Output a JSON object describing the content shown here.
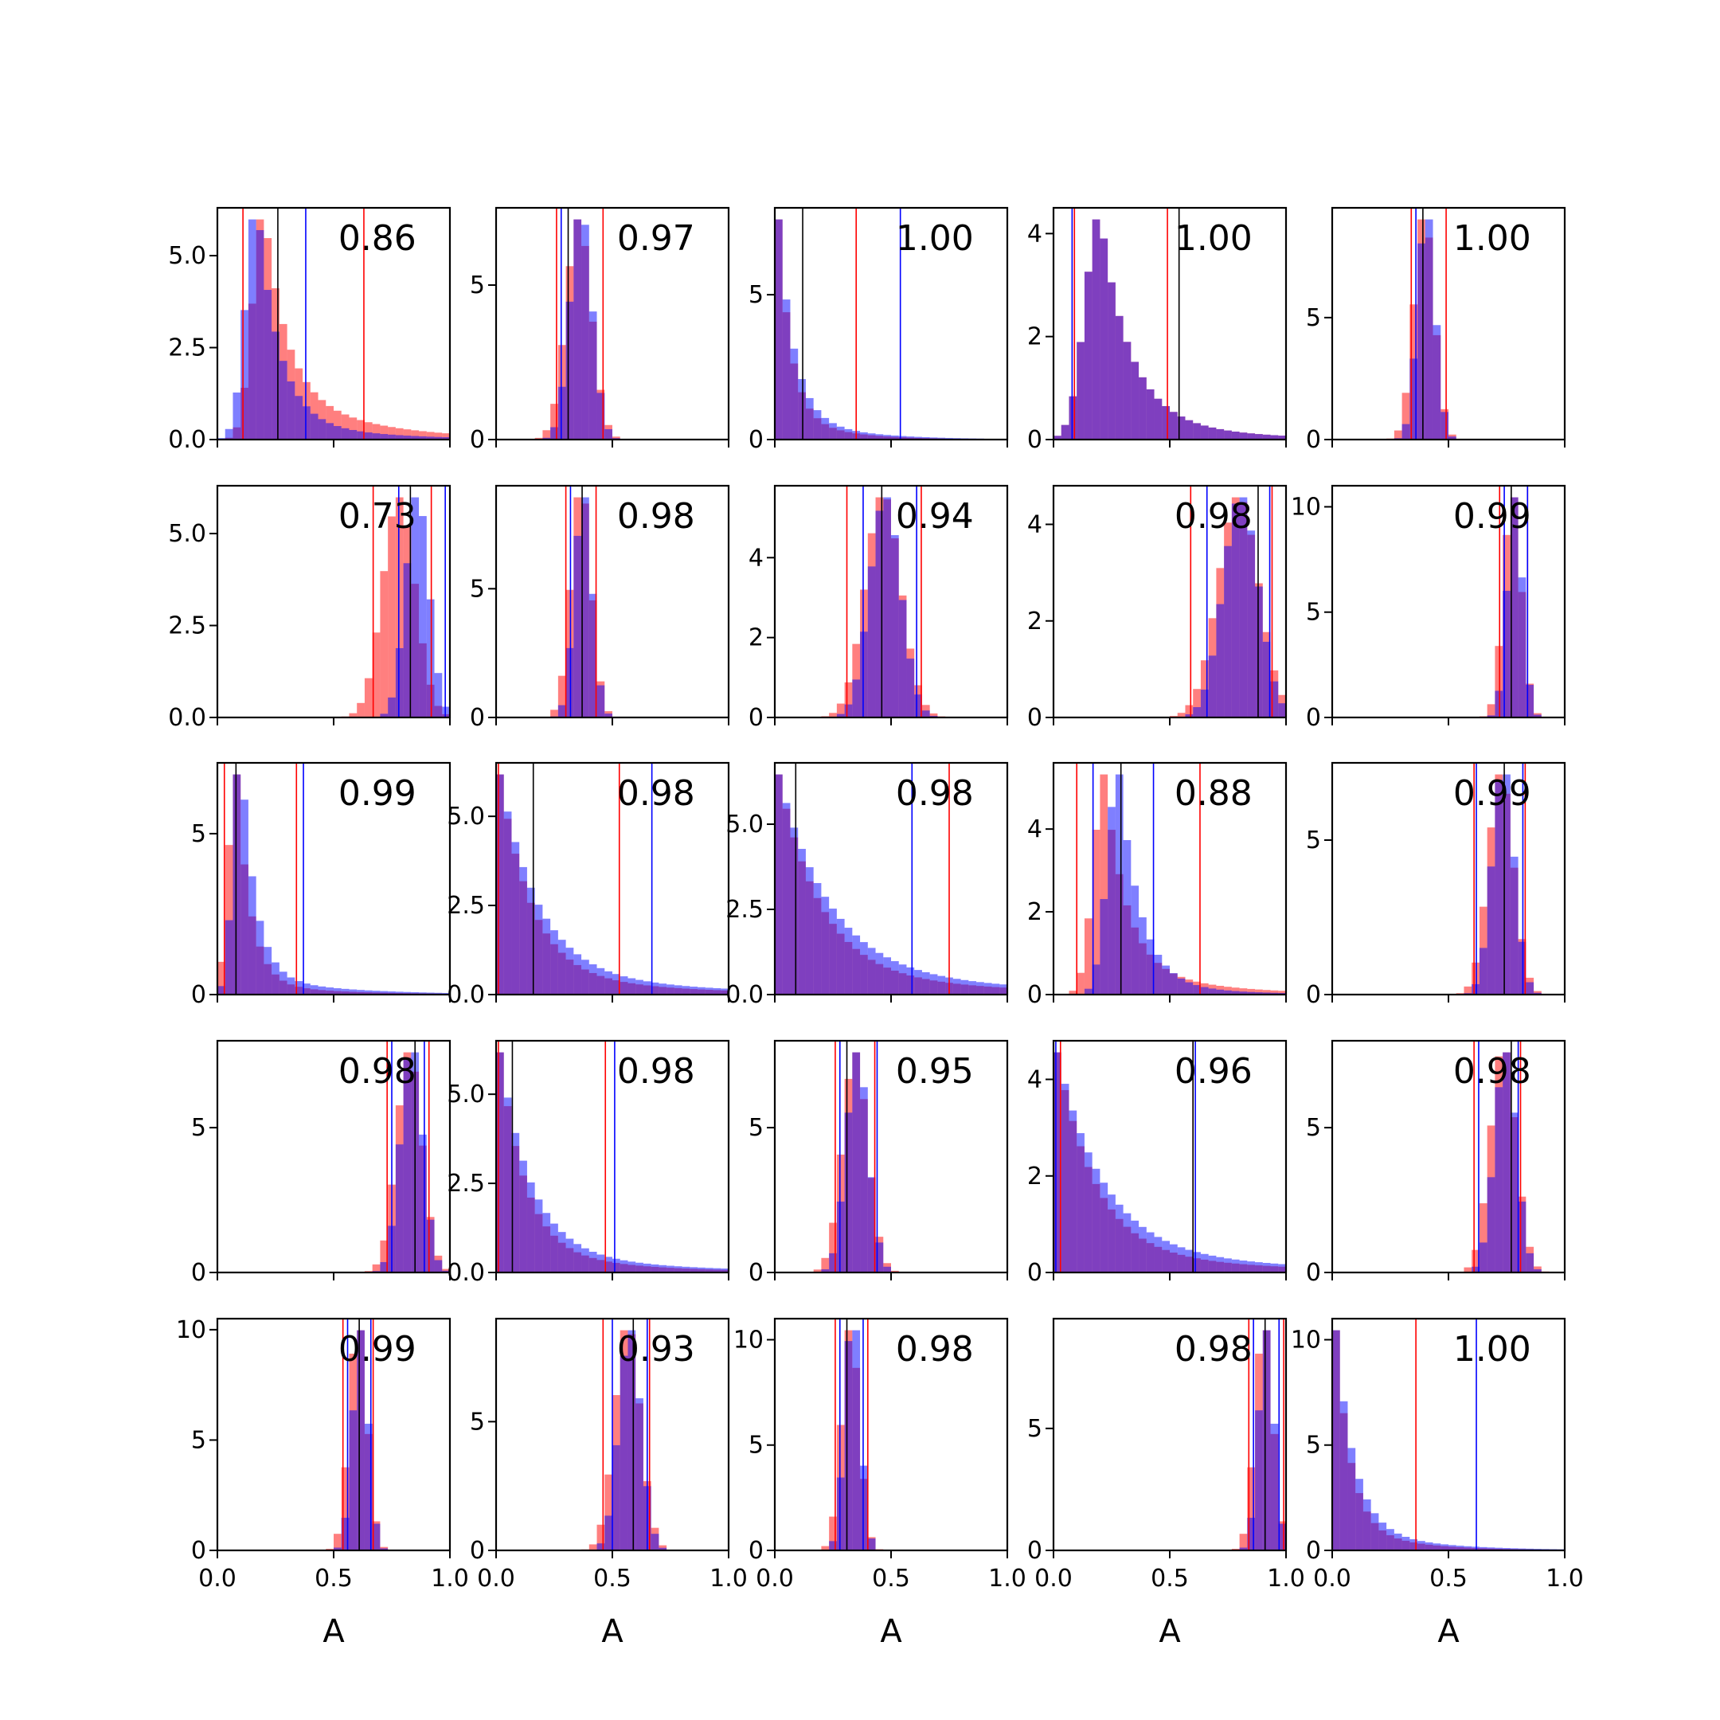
{
  "colors": {
    "red": "#ff0000",
    "blue": "#0000ff",
    "black": "#000000"
  },
  "chart_data": {
    "type": "bar",
    "layout": "grid 5x5 of histograms (shared x-axis per column)",
    "xlabel": "A",
    "xlim": [
      0,
      1
    ],
    "xticks": [
      "0.0",
      "0.5",
      "1.0"
    ],
    "series_colors": {
      "first": "red",
      "second": "blue",
      "overlap": "purple"
    },
    "panels": [
      {
        "row": 0,
        "col": 0,
        "annotation": "0.86",
        "ylim": [
          0,
          6.3
        ],
        "yticks": [
          "0.0",
          "2.5",
          "5.0"
        ],
        "ytick_values": [
          0,
          2.5,
          5
        ],
        "red_lines": [
          0.11,
          0.63
        ],
        "blue_lines": [
          0.38
        ],
        "black_lines": [
          0.26
        ],
        "hist": {
          "type": "skewed",
          "mode_red": 0.2,
          "mode_blue": 0.17,
          "width": 0.06,
          "tail_red": 0.25,
          "tail_blue": 0.1
        }
      },
      {
        "row": 0,
        "col": 1,
        "annotation": "0.97",
        "ylim": [
          0,
          7.5
        ],
        "yticks": [
          "0",
          "5"
        ],
        "ytick_values": [
          0,
          5
        ],
        "red_lines": [
          0.26,
          0.46
        ],
        "blue_lines": [
          0.28
        ],
        "black_lines": [
          0.31
        ],
        "hist": {
          "type": "normal",
          "mean": 0.36,
          "sd": 0.05
        }
      },
      {
        "row": 0,
        "col": 2,
        "annotation": "1.00",
        "ylim": [
          0,
          8
        ],
        "yticks": [
          "0",
          "5"
        ],
        "ytick_values": [
          0,
          5
        ],
        "red_lines": [
          0.35
        ],
        "blue_lines": [
          0.54
        ],
        "black_lines": [
          0.12
        ],
        "hist": {
          "type": "decay",
          "scale": 0.06
        }
      },
      {
        "row": 0,
        "col": 3,
        "annotation": "1.00",
        "ylim": [
          0,
          4.5
        ],
        "yticks": [
          "0",
          "2",
          "4"
        ],
        "ytick_values": [
          0,
          2,
          4
        ],
        "red_lines": [
          0.09,
          0.49
        ],
        "blue_lines": [
          0.08
        ],
        "black_lines": [
          0.54
        ],
        "hist": {
          "type": "skewed",
          "mode_red": 0.2,
          "mode_blue": 0.2,
          "width": 0.08,
          "tail_red": 0.15,
          "tail_blue": 0.15
        }
      },
      {
        "row": 0,
        "col": 4,
        "annotation": "1.00",
        "ylim": [
          0,
          9.5
        ],
        "yticks": [
          "0",
          "5"
        ],
        "ytick_values": [
          0,
          5
        ],
        "red_lines": [
          0.34,
          0.49
        ],
        "blue_lines": [
          0.36
        ],
        "black_lines": [
          0.39
        ],
        "hist": {
          "type": "normal",
          "mean": 0.4,
          "sd": 0.04
        }
      },
      {
        "row": 1,
        "col": 0,
        "annotation": "0.73",
        "ylim": [
          0,
          6.3
        ],
        "yticks": [
          "0.0",
          "2.5",
          "5.0"
        ],
        "ytick_values": [
          0,
          2.5,
          5
        ],
        "red_lines": [
          0.67,
          0.92
        ],
        "blue_lines": [
          0.78,
          0.98
        ],
        "black_lines": [
          0.83
        ],
        "hist": {
          "type": "normal2",
          "mean_red": 0.78,
          "sd_red": 0.07,
          "mean_blue": 0.86,
          "sd_blue": 0.05
        }
      },
      {
        "row": 1,
        "col": 1,
        "annotation": "0.98",
        "ylim": [
          0,
          9
        ],
        "yticks": [
          "0",
          "5"
        ],
        "ytick_values": [
          0,
          5
        ],
        "red_lines": [
          0.3,
          0.43
        ],
        "blue_lines": [
          0.32
        ],
        "black_lines": [
          0.37
        ],
        "hist": {
          "type": "normal",
          "mean": 0.37,
          "sd": 0.04
        }
      },
      {
        "row": 1,
        "col": 2,
        "annotation": "0.94",
        "ylim": [
          0,
          5.8
        ],
        "yticks": [
          "0",
          "2",
          "4"
        ],
        "ytick_values": [
          0,
          2,
          4
        ],
        "red_lines": [
          0.31,
          0.63
        ],
        "blue_lines": [
          0.38,
          0.61
        ],
        "black_lines": [
          0.46
        ],
        "hist": {
          "type": "normal",
          "mean": 0.47,
          "sd": 0.07
        }
      },
      {
        "row": 1,
        "col": 3,
        "annotation": "0.98",
        "ylim": [
          0,
          4.8
        ],
        "yticks": [
          "0",
          "2",
          "4"
        ],
        "ytick_values": [
          0,
          2,
          4
        ],
        "red_lines": [
          0.59,
          0.94
        ],
        "blue_lines": [
          0.66,
          0.93
        ],
        "black_lines": [
          0.88
        ],
        "hist": {
          "type": "normal",
          "mean": 0.8,
          "sd": 0.08
        }
      },
      {
        "row": 1,
        "col": 4,
        "annotation": "0.99",
        "ylim": [
          0,
          11
        ],
        "yticks": [
          "0",
          "5",
          "10"
        ],
        "ytick_values": [
          0,
          5,
          10
        ],
        "red_lines": [
          0.72,
          0.84
        ],
        "blue_lines": [
          0.74,
          0.84
        ],
        "black_lines": [
          0.77
        ],
        "hist": {
          "type": "normal",
          "mean": 0.78,
          "sd": 0.035
        }
      },
      {
        "row": 2,
        "col": 0,
        "annotation": "0.99",
        "ylim": [
          0,
          7.2
        ],
        "yticks": [
          "0",
          "5"
        ],
        "ytick_values": [
          0,
          5
        ],
        "red_lines": [
          0.03,
          0.34
        ],
        "blue_lines": [
          0.37
        ],
        "black_lines": [
          0.08
        ],
        "hist": {
          "type": "skewed",
          "mode_red": 0.08,
          "mode_blue": 0.1,
          "width": 0.04,
          "tail_red": 0.05,
          "tail_blue": 0.08
        }
      },
      {
        "row": 2,
        "col": 1,
        "annotation": "0.98",
        "ylim": [
          0,
          6.5
        ],
        "yticks": [
          "0.0",
          "2.5",
          "5.0"
        ],
        "ytick_values": [
          0,
          2.5,
          5
        ],
        "red_lines": [
          0.01,
          0.53
        ],
        "blue_lines": [
          0.67
        ],
        "black_lines": [
          0.16
        ],
        "hist": {
          "type": "decay",
          "scale": 0.15
        }
      },
      {
        "row": 2,
        "col": 2,
        "annotation": "0.98",
        "ylim": [
          0,
          6.8
        ],
        "yticks": [
          "0.0",
          "2.5",
          "5.0"
        ],
        "ytick_values": [
          0,
          2.5,
          5
        ],
        "red_lines": [
          0.0,
          0.75
        ],
        "blue_lines": [
          0.59
        ],
        "black_lines": [
          0.09
        ],
        "hist": {
          "type": "decay",
          "scale": 0.2
        }
      },
      {
        "row": 2,
        "col": 3,
        "annotation": "0.88",
        "ylim": [
          0,
          5.6
        ],
        "yticks": [
          "0",
          "2",
          "4"
        ],
        "ytick_values": [
          0,
          2,
          4
        ],
        "red_lines": [
          0.1,
          0.63
        ],
        "blue_lines": [
          0.17,
          0.43
        ],
        "black_lines": [
          0.29
        ],
        "hist": {
          "type": "skewed",
          "mode_red": 0.22,
          "mode_blue": 0.28,
          "width": 0.06,
          "tail_red": 0.15,
          "tail_blue": 0.05
        }
      },
      {
        "row": 2,
        "col": 4,
        "annotation": "0.99",
        "ylim": [
          0,
          7.5
        ],
        "yticks": [
          "0",
          "5"
        ],
        "ytick_values": [
          0,
          5
        ],
        "red_lines": [
          0.61,
          0.83
        ],
        "blue_lines": [
          0.62,
          0.82
        ],
        "black_lines": [
          0.74
        ],
        "hist": {
          "type": "normal",
          "mean": 0.73,
          "sd": 0.05
        }
      },
      {
        "row": 3,
        "col": 0,
        "annotation": "0.98",
        "ylim": [
          0,
          8
        ],
        "yticks": [
          "0",
          "5"
        ],
        "ytick_values": [
          0,
          5
        ],
        "red_lines": [
          0.73,
          0.91
        ],
        "blue_lines": [
          0.75,
          0.89
        ],
        "black_lines": [
          0.85
        ],
        "hist": {
          "type": "normal",
          "mean": 0.83,
          "sd": 0.05
        }
      },
      {
        "row": 3,
        "col": 1,
        "annotation": "0.98",
        "ylim": [
          0,
          6.5
        ],
        "yticks": [
          "0.0",
          "2.5",
          "5.0"
        ],
        "ytick_values": [
          0,
          2.5,
          5
        ],
        "red_lines": [
          0.01,
          0.47
        ],
        "blue_lines": [
          0.51
        ],
        "black_lines": [
          0.07
        ],
        "hist": {
          "type": "decay",
          "scale": 0.12
        }
      },
      {
        "row": 3,
        "col": 2,
        "annotation": "0.95",
        "ylim": [
          0,
          8
        ],
        "yticks": [
          "0",
          "5"
        ],
        "ytick_values": [
          0,
          5
        ],
        "red_lines": [
          0.26,
          0.43
        ],
        "blue_lines": [
          0.28,
          0.44
        ],
        "black_lines": [
          0.31
        ],
        "hist": {
          "type": "normal",
          "mean": 0.35,
          "sd": 0.05
        }
      },
      {
        "row": 3,
        "col": 3,
        "annotation": "0.96",
        "ylim": [
          0,
          4.8
        ],
        "yticks": [
          "0",
          "2",
          "4"
        ],
        "ytick_values": [
          0,
          2,
          4
        ],
        "red_lines": [
          0.03,
          0.6
        ],
        "blue_lines": [
          0.01,
          0.61
        ],
        "black_lines": [
          0.6
        ],
        "hist": {
          "type": "decay",
          "scale": 0.18
        }
      },
      {
        "row": 3,
        "col": 4,
        "annotation": "0.98",
        "ylim": [
          0,
          8
        ],
        "yticks": [
          "0",
          "5"
        ],
        "ytick_values": [
          0,
          5
        ],
        "red_lines": [
          0.61,
          0.81
        ],
        "blue_lines": [
          0.63,
          0.8
        ],
        "black_lines": [
          0.77
        ],
        "hist": {
          "type": "normal",
          "mean": 0.74,
          "sd": 0.05
        }
      },
      {
        "row": 4,
        "col": 0,
        "annotation": "0.99",
        "ylim": [
          0,
          10.5
        ],
        "yticks": [
          "0",
          "5",
          "10"
        ],
        "ytick_values": [
          0,
          5,
          10
        ],
        "red_lines": [
          0.54,
          0.67
        ],
        "blue_lines": [
          0.56,
          0.66
        ],
        "black_lines": [
          0.61
        ],
        "hist": {
          "type": "normal",
          "mean": 0.61,
          "sd": 0.035
        }
      },
      {
        "row": 4,
        "col": 1,
        "annotation": "0.93",
        "ylim": [
          0,
          9
        ],
        "yticks": [
          "0",
          "5"
        ],
        "ytick_values": [
          0,
          5
        ],
        "red_lines": [
          0.46,
          0.66
        ],
        "blue_lines": [
          0.5,
          0.65
        ],
        "black_lines": [
          0.59
        ],
        "hist": {
          "type": "normal",
          "mean": 0.57,
          "sd": 0.05
        }
      },
      {
        "row": 4,
        "col": 2,
        "annotation": "0.98",
        "ylim": [
          0,
          11
        ],
        "yticks": [
          "0",
          "5",
          "10"
        ],
        "ytick_values": [
          0,
          5,
          10
        ],
        "red_lines": [
          0.26,
          0.4
        ],
        "blue_lines": [
          0.28,
          0.38
        ],
        "black_lines": [
          0.31
        ],
        "hist": {
          "type": "normal",
          "mean": 0.33,
          "sd": 0.035
        }
      },
      {
        "row": 4,
        "col": 3,
        "annotation": "0.98",
        "ylim": [
          0,
          9.5
        ],
        "yticks": [
          "0",
          "5"
        ],
        "ytick_values": [
          0,
          5
        ],
        "red_lines": [
          0.84,
          0.99
        ],
        "blue_lines": [
          0.86,
          0.97
        ],
        "black_lines": [
          0.91
        ],
        "hist": {
          "type": "normal",
          "mean": 0.91,
          "sd": 0.035
        }
      },
      {
        "row": 4,
        "col": 4,
        "annotation": "1.00",
        "ylim": [
          0,
          11
        ],
        "yticks": [
          "0",
          "5",
          "10"
        ],
        "ytick_values": [
          0,
          5,
          10
        ],
        "red_lines": [
          0.36
        ],
        "blue_lines": [
          0.62
        ],
        "black_lines": [
          0.0
        ],
        "hist": {
          "type": "decay",
          "scale": 0.07
        }
      }
    ]
  }
}
